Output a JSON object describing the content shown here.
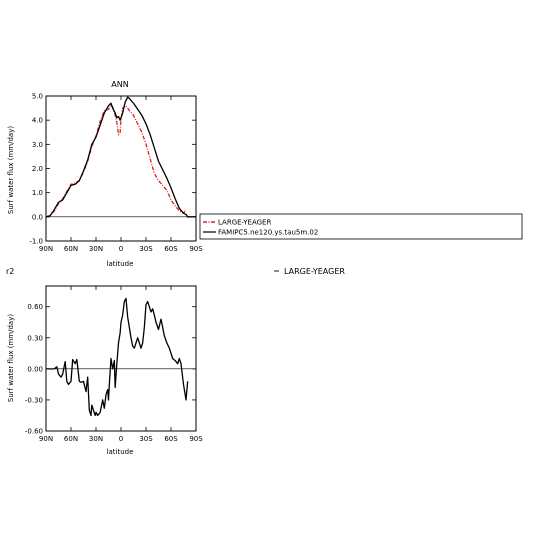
{
  "chart_data": [
    {
      "type": "line",
      "title": "ANN",
      "xlabel": "latitude",
      "ylabel": "Surf water flux (mm/day)",
      "xlim": [
        90,
        -90
      ],
      "ylim": [
        -1.0,
        5.0
      ],
      "x_ticks": [
        90,
        60,
        30,
        0,
        -30,
        -60,
        -90
      ],
      "x_tick_labels": [
        "90N",
        "60N",
        "30N",
        "0",
        "30S",
        "60S",
        "90S"
      ],
      "y_ticks": [
        -1.0,
        0.0,
        1.0,
        2.0,
        3.0,
        4.0,
        5.0
      ],
      "y_tick_labels": [
        "-1.0",
        "0.0",
        "1.0",
        "2.0",
        "3.0",
        "4.0",
        "5.0"
      ],
      "legend_placement": "right",
      "series": [
        {
          "name": "LARGE-YEAGER",
          "color": "#dd2222",
          "style": "dash-dot",
          "x": [
            90,
            85,
            80,
            75,
            70,
            65,
            60,
            55,
            50,
            45,
            40,
            35,
            30,
            25,
            20,
            15,
            12,
            10,
            7,
            5,
            3,
            1,
            0,
            -2,
            -5,
            -8,
            -10,
            -15,
            -20,
            -25,
            -30,
            -35,
            -40,
            -45,
            -50,
            -55,
            -60,
            -65,
            -70,
            -75,
            -78
          ],
          "y": [
            0.0,
            0.05,
            0.25,
            0.55,
            0.75,
            1.05,
            1.35,
            1.4,
            1.5,
            1.85,
            2.3,
            2.9,
            3.35,
            3.95,
            4.4,
            4.45,
            4.62,
            4.55,
            4.2,
            3.9,
            3.4,
            3.5,
            4.0,
            4.5,
            4.6,
            4.5,
            4.4,
            4.2,
            3.85,
            3.5,
            3.0,
            2.4,
            1.8,
            1.5,
            1.3,
            1.1,
            0.7,
            0.45,
            0.25,
            0.15,
            0.3
          ]
        },
        {
          "name": "FAMIPC5.ne120.ys.tau5m.02",
          "color": "#000000",
          "style": "solid",
          "x": [
            90,
            85,
            80,
            75,
            70,
            65,
            60,
            55,
            50,
            45,
            40,
            35,
            30,
            25,
            20,
            15,
            12,
            10,
            7,
            5,
            3,
            1,
            -2,
            -5,
            -8,
            -10,
            -15,
            -20,
            -25,
            -30,
            -35,
            -40,
            -45,
            -50,
            -55,
            -60,
            -65,
            -70,
            -75,
            -78,
            -80,
            -85,
            -90
          ],
          "y": [
            0.0,
            0.05,
            0.3,
            0.6,
            0.7,
            1.0,
            1.3,
            1.35,
            1.5,
            1.9,
            2.35,
            3.0,
            3.3,
            3.8,
            4.3,
            4.6,
            4.7,
            4.5,
            4.3,
            4.1,
            4.15,
            4.0,
            4.3,
            4.75,
            4.95,
            4.9,
            4.7,
            4.45,
            4.2,
            3.85,
            3.4,
            2.85,
            2.3,
            1.95,
            1.6,
            1.2,
            0.75,
            0.35,
            0.15,
            0.1,
            0.0,
            0.0,
            0.0
          ]
        }
      ]
    },
    {
      "type": "line",
      "title": "",
      "xlabel": "latitude",
      "ylabel": "Surf water flux (mm/day)",
      "xlim": [
        90,
        -90
      ],
      "ylim": [
        -0.6,
        0.8
      ],
      "x_ticks": [
        90,
        60,
        30,
        0,
        -30,
        -60,
        -90
      ],
      "x_tick_labels": [
        "90N",
        "60N",
        "30N",
        "0",
        "30S",
        "60S",
        "90S"
      ],
      "y_ticks": [
        -0.6,
        -0.3,
        0.0,
        0.3,
        0.6
      ],
      "y_tick_labels": [
        "-0.60",
        "-0.30",
        "0.00",
        "0.30",
        "0.60"
      ],
      "legend_placement": "right",
      "corner_label": "r2",
      "series": [
        {
          "name": "LARGE-YEAGER",
          "color": "#000000",
          "style": "solid",
          "x": [
            90,
            85,
            80,
            77,
            75,
            72,
            70,
            67,
            65,
            63,
            60,
            58,
            55,
            53,
            50,
            48,
            45,
            42,
            40,
            38,
            36,
            35,
            33,
            31,
            30,
            28,
            25,
            22,
            20,
            18,
            16,
            15,
            14,
            12,
            10,
            8,
            7,
            5,
            3,
            1,
            0,
            -2,
            -4,
            -6,
            -8,
            -10,
            -12,
            -14,
            -16,
            -18,
            -20,
            -22,
            -24,
            -26,
            -28,
            -30,
            -32,
            -34,
            -36,
            -38,
            -40,
            -42,
            -45,
            -48,
            -50,
            -52,
            -55,
            -58,
            -60,
            -62,
            -65,
            -68,
            -70,
            -72,
            -75,
            -78,
            -80
          ],
          "y": [
            0.0,
            0.0,
            0.0,
            0.02,
            -0.05,
            -0.08,
            -0.05,
            0.07,
            -0.12,
            -0.15,
            -0.12,
            0.09,
            0.05,
            0.09,
            -0.12,
            -0.13,
            -0.12,
            -0.22,
            -0.08,
            -0.4,
            -0.45,
            -0.35,
            -0.4,
            -0.45,
            -0.42,
            -0.45,
            -0.42,
            -0.3,
            -0.38,
            -0.25,
            -0.2,
            -0.3,
            -0.15,
            0.1,
            0.0,
            0.08,
            -0.18,
            0.05,
            0.25,
            0.35,
            0.45,
            0.52,
            0.65,
            0.68,
            0.5,
            0.4,
            0.3,
            0.22,
            0.2,
            0.25,
            0.3,
            0.25,
            0.2,
            0.25,
            0.4,
            0.62,
            0.65,
            0.6,
            0.55,
            0.58,
            0.52,
            0.45,
            0.38,
            0.48,
            0.4,
            0.32,
            0.25,
            0.2,
            0.15,
            0.1,
            0.08,
            0.05,
            0.1,
            0.05,
            -0.15,
            -0.3,
            -0.12
          ]
        }
      ]
    }
  ]
}
